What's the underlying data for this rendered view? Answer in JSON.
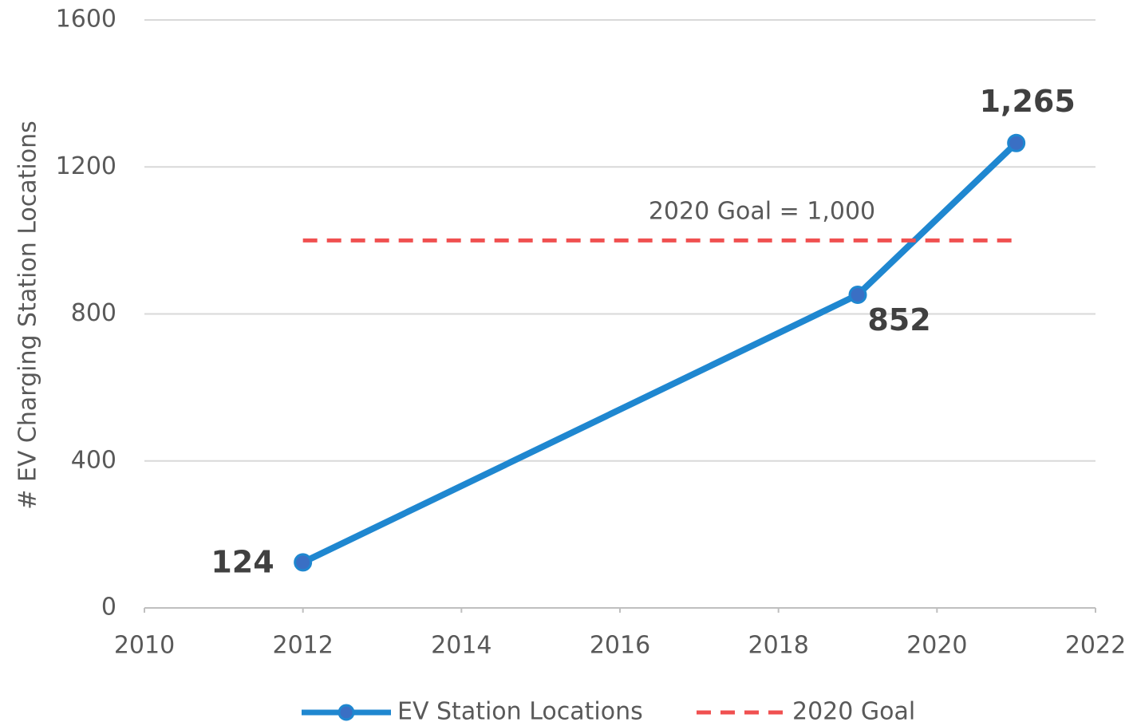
{
  "chart_data": {
    "type": "line",
    "y_label": "# EV Charging Station Locations",
    "annotation": "2020 Goal = 1,000",
    "x": [
      2012,
      2019,
      2021
    ],
    "series": [
      {
        "name": "EV Station Locations",
        "color": "#1f87d0",
        "marker_color": "#3a6fc4",
        "values": [
          124,
          852,
          1265
        ],
        "value_labels": [
          "124",
          "852",
          "1,265"
        ]
      },
      {
        "name": "2020 Goal",
        "color": "#f05050",
        "dashed": true,
        "values": [
          1000,
          1000,
          1000
        ]
      }
    ],
    "xlim": [
      2010,
      2022
    ],
    "xticks": [
      2010,
      2012,
      2014,
      2016,
      2018,
      2020,
      2022
    ],
    "ylim": [
      0,
      1600
    ],
    "yticks": [
      0,
      400,
      800,
      1200,
      1600
    ],
    "grid": true,
    "legend": "bottom"
  }
}
